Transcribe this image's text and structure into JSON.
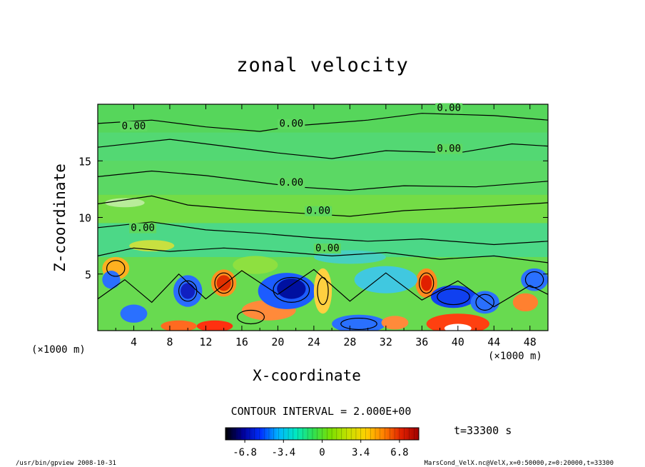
{
  "chart_data": {
    "type": "heatmap",
    "title": "zonal velocity",
    "xlabel": "X-coordinate",
    "ylabel": "Z-coordinate",
    "x_unit_left": "(×1000 m)",
    "x_unit_right": "(×1000 m)",
    "xlim": [
      0,
      50
    ],
    "ylim": [
      0,
      20
    ],
    "x_ticks": [
      4,
      8,
      12,
      16,
      20,
      24,
      28,
      32,
      36,
      40,
      44,
      48
    ],
    "y_ticks": [
      5,
      10,
      15
    ],
    "contour_labels": [
      {
        "text": "0.00",
        "x": 39.0,
        "y": 19.4
      },
      {
        "text": "0.00",
        "x": 4.0,
        "y": 17.8
      },
      {
        "text": "0.00",
        "x": 21.5,
        "y": 18.0
      },
      {
        "text": "0.00",
        "x": 39.0,
        "y": 15.8
      },
      {
        "text": "0.00",
        "x": 21.5,
        "y": 12.8
      },
      {
        "text": "0.00",
        "x": 24.5,
        "y": 10.3
      },
      {
        "text": "0.00",
        "x": 5.0,
        "y": 8.8
      },
      {
        "text": "0.00",
        "x": 25.5,
        "y": 7.0
      }
    ],
    "colorbar": {
      "range": [
        -8.5,
        8.5
      ],
      "tick_labels": [
        "-6.8",
        "-3.4",
        "0",
        "3.4",
        "6.8"
      ],
      "tick_values": [
        -6.8,
        -3.4,
        0,
        3.4,
        6.8
      ],
      "colors": [
        "#000000",
        "#00009a",
        "#0030ff",
        "#00b4ff",
        "#00e8c0",
        "#30e050",
        "#7ce000",
        "#c8e000",
        "#ffd000",
        "#ff8000",
        "#e02000",
        "#a00000"
      ]
    },
    "contour_interval": "CONTOUR INTERVAL = 2.000E+00",
    "time": "t=33300 s"
  },
  "footer": {
    "left": "/usr/bin/gpview  2008-10-31",
    "right": "MarsCond_VelX.nc@VelX,x=0:50000,z=0:20000,t=33300"
  }
}
